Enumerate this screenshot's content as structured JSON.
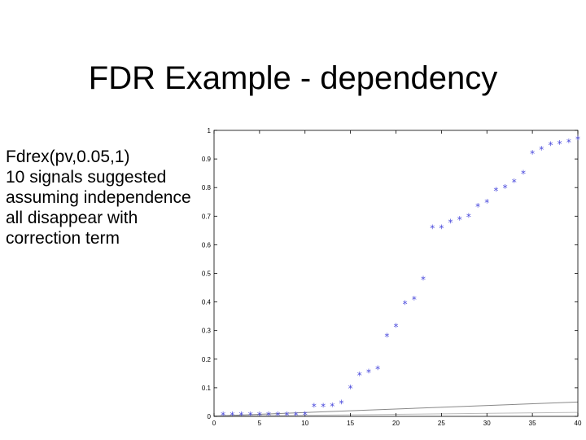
{
  "slide": {
    "title": "FDR Example - dependency",
    "bullets": [
      "Fdrex(pv,0.05,1)",
      "10 signals suggested",
      "assuming independence",
      "all disappear with",
      "correction term"
    ]
  },
  "chart_data": {
    "type": "scatter",
    "xlim": [
      0,
      40
    ],
    "ylim": [
      0,
      1
    ],
    "xticks": [
      0,
      5,
      10,
      15,
      20,
      25,
      30,
      35,
      40
    ],
    "yticks": [
      0,
      0.1,
      0.2,
      0.3,
      0.4,
      0.5,
      0.6,
      0.7,
      0.8,
      0.9,
      1
    ],
    "grid": false,
    "series": [
      {
        "marker": "*",
        "color": "#4a4adc",
        "x": [
          1,
          2,
          3,
          4,
          5,
          6,
          7,
          8,
          9,
          10,
          11,
          12,
          13,
          14,
          15,
          16,
          17,
          18,
          19,
          20,
          21,
          22,
          23,
          24,
          25,
          26,
          27,
          28,
          29,
          30,
          31,
          32,
          33,
          34,
          35,
          36,
          37,
          38,
          39,
          40
        ],
        "y": [
          0.005,
          0.005,
          0.005,
          0.005,
          0.005,
          0.006,
          0.006,
          0.006,
          0.006,
          0.007,
          0.035,
          0.035,
          0.037,
          0.047,
          0.1,
          0.145,
          0.155,
          0.167,
          0.28,
          0.315,
          0.395,
          0.41,
          0.48,
          0.66,
          0.66,
          0.68,
          0.69,
          0.7,
          0.735,
          0.75,
          0.79,
          0.8,
          0.82,
          0.85,
          0.92,
          0.935,
          0.95,
          0.955,
          0.96,
          0.97
        ]
      }
    ],
    "lines": [
      {
        "color": "#888888",
        "x": [
          0,
          40
        ],
        "y": [
          0.0012,
          0.05
        ]
      },
      {
        "color": "#bbbbbb",
        "x": [
          0,
          40
        ],
        "y": [
          0.0004,
          0.014
        ]
      }
    ]
  }
}
